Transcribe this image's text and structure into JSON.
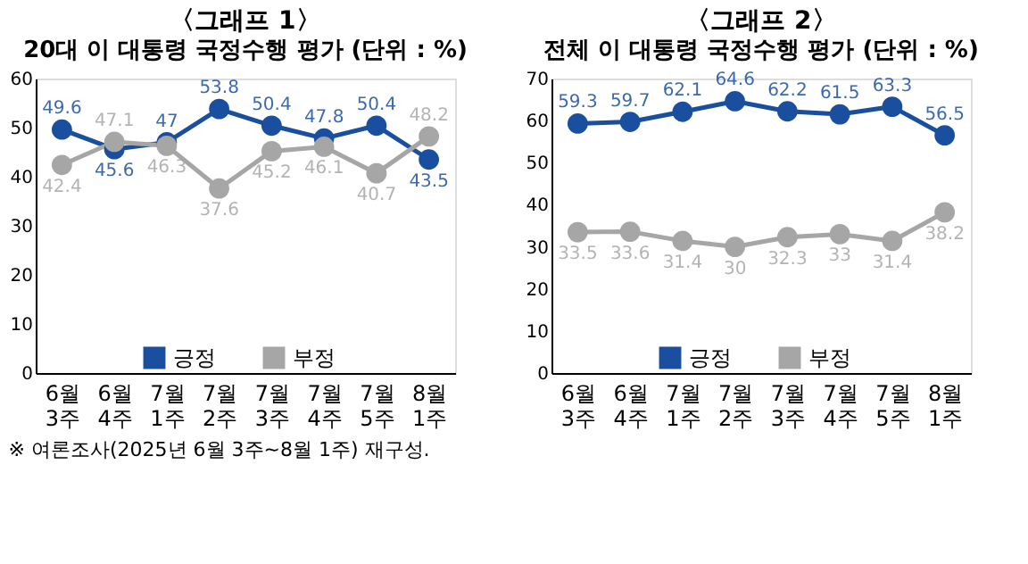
{
  "chart_data": [
    {
      "type": "line",
      "title": "〈그래프 1〉",
      "subtitle": "20대 이 대통령 국정수행 평가 (단위 : %)",
      "categories": [
        "6월 3주",
        "6월 4주",
        "7월 1주",
        "7월 2주",
        "7월 3주",
        "7월 4주",
        "7월 5주",
        "8월 1주"
      ],
      "series": [
        {
          "name": "긍정",
          "color": "#1a4fa0",
          "values": [
            49.6,
            45.6,
            47,
            53.8,
            50.4,
            47.8,
            50.4,
            43.5
          ]
        },
        {
          "name": "부정",
          "color": "#a6a6a6",
          "values": [
            42.4,
            47.1,
            46.3,
            37.6,
            45.2,
            46.1,
            40.7,
            48.2
          ]
        }
      ],
      "ylim": [
        0,
        60
      ],
      "yticks": [
        0,
        10,
        20,
        30,
        40,
        50,
        60
      ],
      "grid": false,
      "legend": "bottom",
      "marker": "circle",
      "line_style": "solid",
      "data_labels": true,
      "annotations": [
        "※ 여론조사(2025년 6월 3주~8월 1주) 재구성."
      ]
    },
    {
      "type": "line",
      "title": "〈그래프 2〉",
      "subtitle": "전체 이 대통령 국정수행 평가 (단위 : %)",
      "categories": [
        "6월 3주",
        "6월 4주",
        "7월 1주",
        "7월 2주",
        "7월 3주",
        "7월 4주",
        "7월 5주",
        "8월 1주"
      ],
      "series": [
        {
          "name": "긍정",
          "color": "#1a4fa0",
          "values": [
            59.3,
            59.7,
            62.1,
            64.6,
            62.2,
            61.5,
            63.3,
            56.5
          ]
        },
        {
          "name": "부정",
          "color": "#a6a6a6",
          "values": [
            33.5,
            33.6,
            31.4,
            30,
            32.3,
            33,
            31.4,
            38.2
          ]
        }
      ],
      "ylim": [
        0,
        70
      ],
      "yticks": [
        0,
        10,
        20,
        30,
        40,
        50,
        60,
        70
      ],
      "grid": false,
      "legend": "bottom",
      "marker": "circle",
      "line_style": "solid",
      "data_labels": true
    }
  ]
}
